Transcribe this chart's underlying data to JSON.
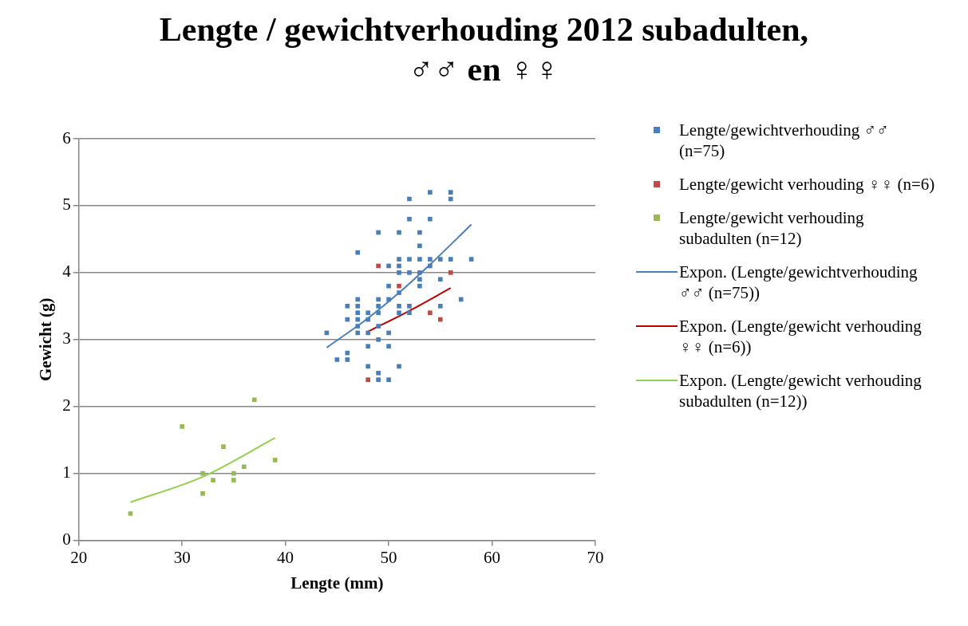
{
  "chart_data": {
    "type": "scatter",
    "title": "Lengte / gewichtverhouding 2012 subadulten,\n♂♂ en ♀♀",
    "xlabel": "Lengte (mm)",
    "ylabel": "Gewicht (g)",
    "xlim": [
      20,
      70
    ],
    "xticks": [
      20,
      30,
      40,
      50,
      60,
      70
    ],
    "ylim": [
      0,
      6
    ],
    "yticks": [
      0,
      1,
      2,
      3,
      4,
      5,
      6
    ],
    "grid": "y",
    "legend": "right",
    "marker": "square",
    "series": [
      {
        "name": "Lengte/gewichtverhouding ♂♂ (n=75)",
        "color": "#4a7ebb",
        "x": [
          44,
          45,
          46,
          46,
          46,
          46,
          47,
          47,
          47,
          47,
          47,
          47,
          47,
          48,
          48,
          48,
          48,
          48,
          49,
          49,
          49,
          49,
          49,
          49,
          49,
          49,
          50,
          50,
          50,
          50,
          50,
          50,
          51,
          51,
          51,
          51,
          51,
          51,
          51,
          51,
          52,
          52,
          52,
          52,
          52,
          52,
          53,
          53,
          53,
          53,
          53,
          53,
          54,
          54,
          54,
          54,
          55,
          55,
          55,
          56,
          56,
          56,
          57,
          58
        ],
        "values": [
          3.1,
          2.7,
          3.5,
          3.3,
          2.8,
          2.7,
          4.3,
          3.6,
          3.5,
          3.4,
          3.3,
          3.2,
          3.1,
          3.4,
          3.3,
          3.1,
          2.9,
          2.6,
          4.6,
          3.6,
          3.5,
          3.4,
          3.2,
          3.0,
          2.5,
          2.4,
          4.1,
          3.8,
          3.6,
          3.1,
          2.9,
          2.4,
          4.6,
          4.2,
          4.1,
          4.0,
          3.7,
          3.5,
          3.4,
          2.6,
          5.1,
          4.8,
          4.2,
          4.0,
          3.5,
          3.4,
          4.6,
          4.4,
          4.2,
          4.0,
          3.9,
          3.8,
          5.2,
          4.8,
          4.2,
          4.1,
          4.2,
          3.9,
          3.5,
          5.2,
          5.1,
          4.2,
          3.6,
          4.2
        ]
      },
      {
        "name": "Lengte/gewicht verhouding ♀♀ (n=6)",
        "color": "#be4b48",
        "x": [
          48,
          49,
          51,
          54,
          55,
          56
        ],
        "values": [
          2.4,
          4.1,
          3.8,
          3.4,
          3.3,
          4.0
        ]
      },
      {
        "name": "Lengte/gewicht verhouding subadulten (n=12)",
        "color": "#98b954",
        "x": [
          25,
          30,
          32,
          32,
          33,
          34,
          35,
          35,
          36,
          37,
          39
        ],
        "values": [
          0.4,
          1.7,
          1.0,
          0.7,
          0.9,
          1.4,
          1.0,
          0.9,
          1.1,
          2.1,
          1.2
        ]
      },
      {
        "name": "Expon. (Lengte/gewichtverhouding ♂♂ (n=75))",
        "type": "line",
        "marker": "none",
        "color": "#4a7ebb",
        "x": [
          44,
          48,
          51,
          54,
          58
        ],
        "values": [
          2.88,
          3.32,
          3.7,
          4.12,
          4.72
        ]
      },
      {
        "name": "Expon. (Lengte/gewicht verhouding ♀♀ (n=6))",
        "type": "line",
        "marker": "none",
        "color": "#c00000",
        "x": [
          48,
          52,
          56
        ],
        "values": [
          3.12,
          3.43,
          3.77
        ]
      },
      {
        "name": "Expon. (Lengte/gewicht verhouding subadulten (n=12))",
        "type": "line",
        "marker": "none",
        "color": "#92d050",
        "x": [
          25,
          32,
          39
        ],
        "values": [
          0.57,
          0.95,
          1.53
        ]
      }
    ]
  }
}
